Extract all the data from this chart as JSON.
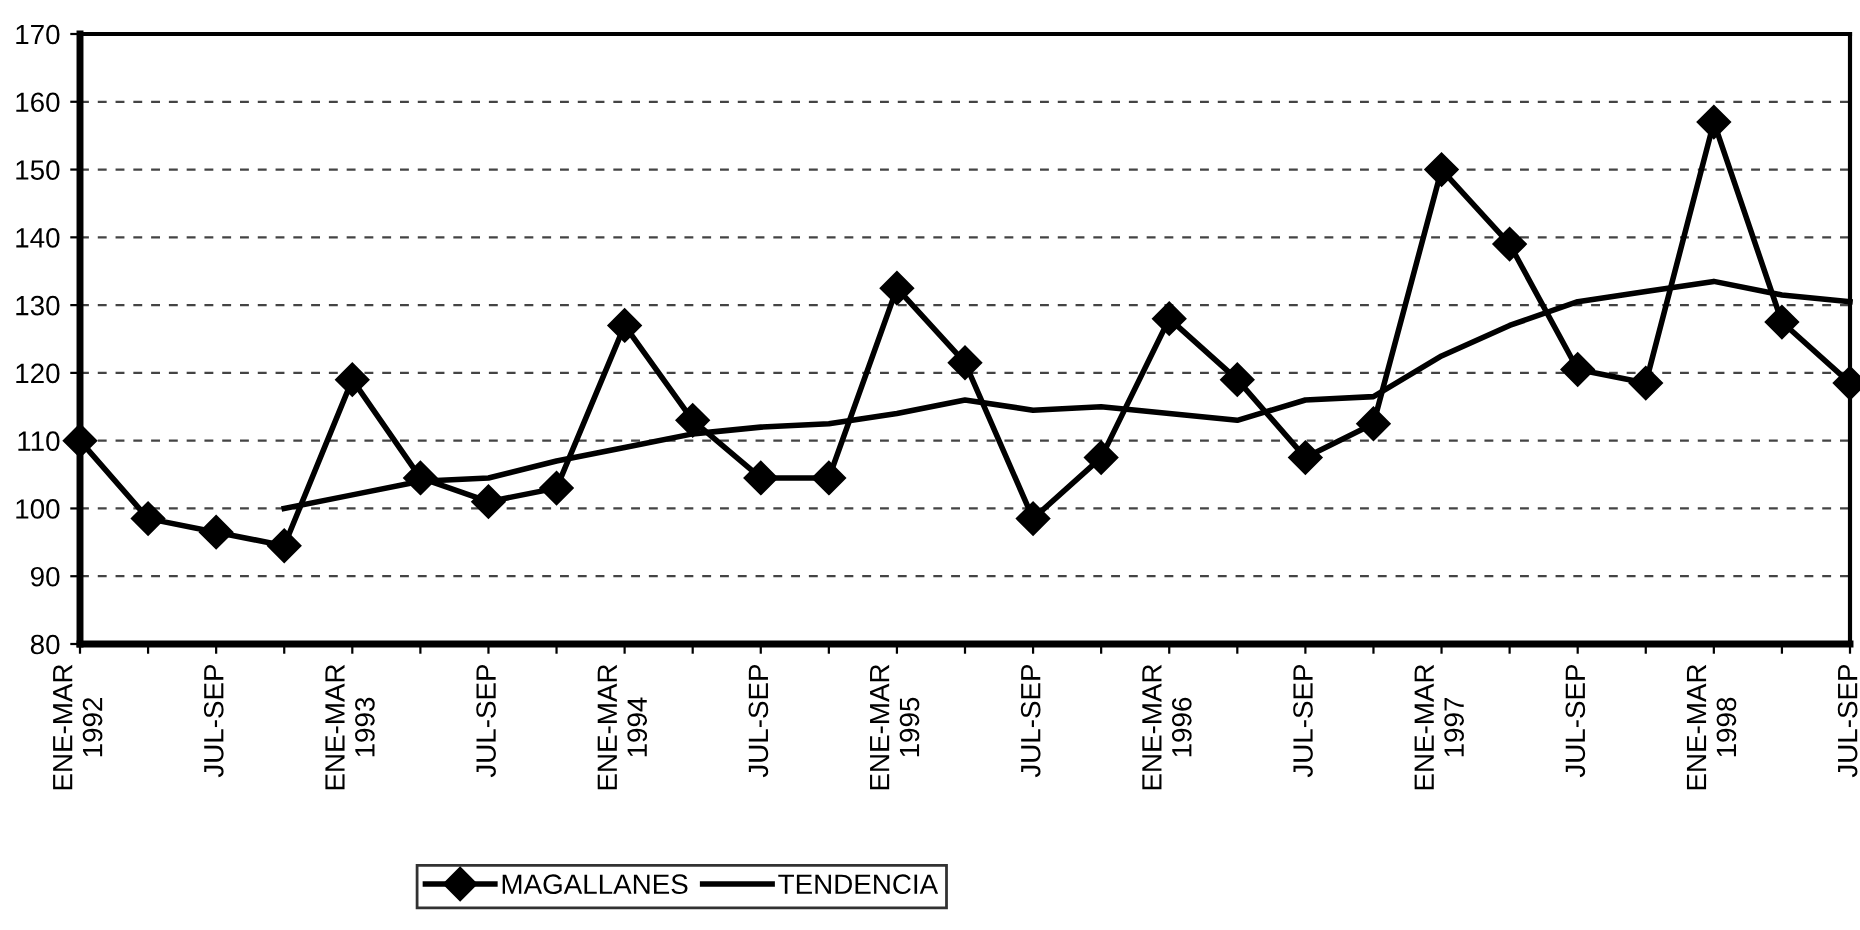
{
  "chart_data": {
    "type": "line",
    "categories": [
      "ENE-MAR\n1992",
      null,
      "JUL-SEP",
      null,
      "ENE-MAR\n1993",
      null,
      "JUL-SEP",
      null,
      "ENE-MAR\n1994",
      null,
      "JUL-SEP",
      null,
      "ENE-MAR\n1995",
      null,
      "JUL-SEP",
      null,
      "ENE-MAR\n1996",
      null,
      "JUL-SEP",
      null,
      "ENE-MAR\n1997",
      null,
      "JUL-SEP",
      null,
      "ENE-MAR\n1998",
      null,
      "JUL-SEP"
    ],
    "series": [
      {
        "name": "MAGALLANES",
        "color": "#000000",
        "marker": "diamond",
        "values": [
          110,
          98.5,
          96.5,
          94.5,
          119,
          104.5,
          101,
          103,
          127,
          113,
          104.5,
          104.5,
          132.5,
          121.5,
          98.5,
          107.5,
          128,
          119,
          107.5,
          112.5,
          150,
          139,
          120.5,
          118.5,
          157,
          127.5,
          118.5
        ]
      },
      {
        "name": "TENDENCIA",
        "color": "#000000",
        "marker": "none",
        "values": [
          null,
          null,
          null,
          100,
          102,
          104,
          104.5,
          107,
          109,
          111,
          112,
          112.5,
          114,
          116,
          114.5,
          115,
          114,
          113,
          116,
          116.5,
          122.5,
          127,
          130.5,
          132,
          133.5,
          131.5,
          130.5
        ]
      }
    ],
    "ylim": [
      80,
      170
    ],
    "yticks": [
      80,
      90,
      100,
      110,
      120,
      130,
      140,
      150,
      160,
      170
    ],
    "grid": "y",
    "legend": "bottom",
    "line_style": "solid"
  }
}
